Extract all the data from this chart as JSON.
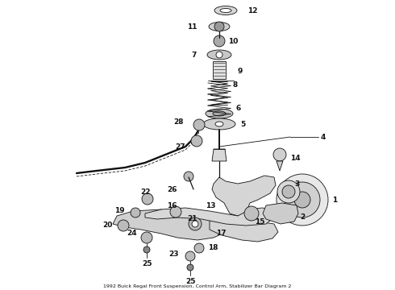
{
  "title": "1992 Buick Regal Front Suspension, Control Arm, Stabilizer Bar Diagram 2",
  "bg_color": "#ffffff",
  "fg_color": "#111111",
  "fig_width": 4.9,
  "fig_height": 3.6,
  "dpi": 100
}
